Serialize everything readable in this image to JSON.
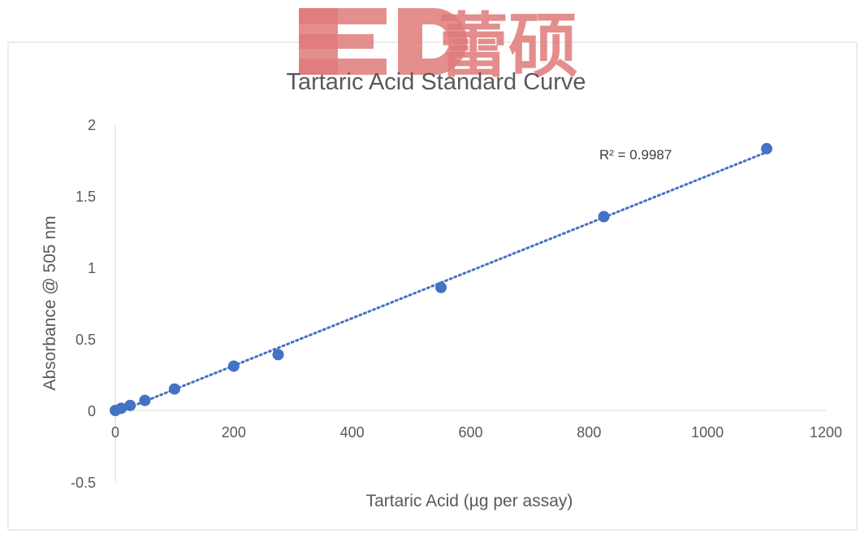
{
  "chart_data": {
    "type": "scatter",
    "title": "Tartaric Acid Standard Curve",
    "xlabel": "Tartaric Acid (µg per assay)",
    "ylabel": "Absorbance @ 505 nm",
    "xlim": [
      0,
      1200
    ],
    "ylim": [
      -0.5,
      2
    ],
    "x_ticks": [
      0,
      200,
      400,
      600,
      800,
      1000,
      1200
    ],
    "y_ticks": [
      -0.5,
      0,
      0.5,
      1,
      1.5,
      2
    ],
    "grid": false,
    "legend": "none",
    "series": [
      {
        "color": "#4472c4",
        "points": [
          {
            "x": 0,
            "y": 0.0
          },
          {
            "x": 10,
            "y": 0.015
          },
          {
            "x": 25,
            "y": 0.035
          },
          {
            "x": 50,
            "y": 0.07
          },
          {
            "x": 100,
            "y": 0.15
          },
          {
            "x": 200,
            "y": 0.31
          },
          {
            "x": 275,
            "y": 0.39
          },
          {
            "x": 550,
            "y": 0.86
          },
          {
            "x": 825,
            "y": 1.355
          },
          {
            "x": 1100,
            "y": 1.83
          }
        ]
      }
    ],
    "trendline": {
      "type": "linear",
      "style": "dotted",
      "color": "#4472c4",
      "label": "R² = 0.9987"
    }
  },
  "watermark": {
    "letters": "ED",
    "chars": "蕾硕",
    "color": "#e07a7a"
  }
}
